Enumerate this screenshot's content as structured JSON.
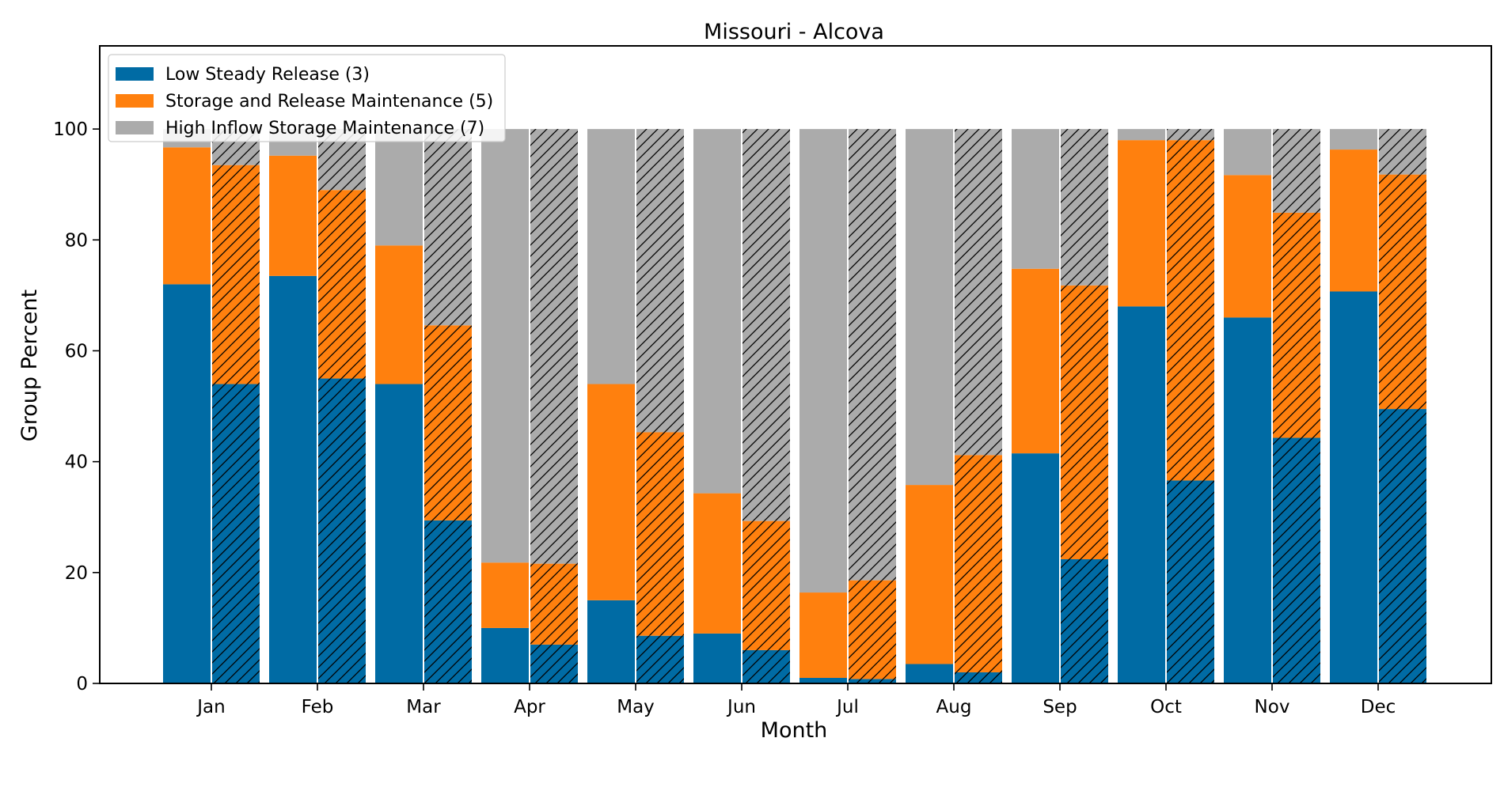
{
  "chart_data": {
    "type": "bar",
    "title": "Missouri - Alcova",
    "xlabel": "Month",
    "ylabel": "Group Percent",
    "ylim": [
      0,
      115
    ],
    "yticks": [
      "0",
      "20",
      "40",
      "60",
      "80",
      "100"
    ],
    "categories": [
      "Jan",
      "Feb",
      "Mar",
      "Apr",
      "May",
      "Jun",
      "Jul",
      "Aug",
      "Sep",
      "Oct",
      "Nov",
      "Dec"
    ],
    "stacked": true,
    "bars_per_category": 2,
    "hatched_second_bar": true,
    "legend_position": "upper-left",
    "series": [
      {
        "name": "Low Steady Release (3)",
        "color": "#006BA4",
        "values_plain": [
          72,
          73.5,
          54,
          10,
          15,
          9,
          1,
          3.5,
          41.5,
          68,
          66,
          70.7
        ],
        "values_hatched": [
          54,
          55,
          29.4,
          7,
          8.6,
          6,
          0.8,
          2,
          22.4,
          36.6,
          44.3,
          49.5
        ]
      },
      {
        "name": "Storage and Release Maintenance (5)",
        "color": "#FF800E",
        "values_plain": [
          24.7,
          21.7,
          25,
          11.8,
          39,
          25.3,
          15.4,
          32.3,
          33.3,
          30,
          25.7,
          25.6
        ],
        "values_hatched": [
          39.5,
          34,
          35.2,
          14.6,
          36.7,
          23.3,
          17.8,
          39.2,
          49.4,
          61.4,
          40.6,
          42.3
        ]
      },
      {
        "name": "High Inflow Storage Maintenance (7)",
        "color": "#ABABAB",
        "values_plain": [
          3.3,
          4.8,
          21,
          78.2,
          46,
          65.7,
          83.6,
          64.2,
          25.2,
          2,
          8.3,
          3.7
        ],
        "values_hatched": [
          6.5,
          11,
          35.4,
          78.4,
          54.7,
          70.7,
          81.4,
          58.8,
          28.2,
          2,
          15.1,
          8.2
        ]
      }
    ]
  }
}
